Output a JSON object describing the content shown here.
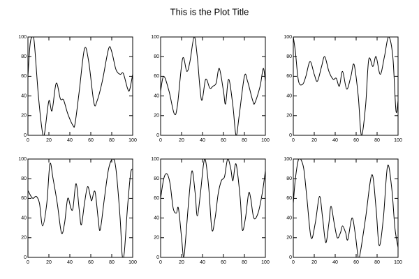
{
  "title": "This is the Plot Title",
  "chart_data": [
    {
      "type": "line",
      "color": "#000000",
      "xlim": [
        0,
        100
      ],
      "ylim": [
        0,
        100
      ],
      "xticks": [
        0,
        20,
        40,
        60,
        80,
        100
      ],
      "yticks": [
        0,
        20,
        40,
        60,
        80,
        100
      ],
      "x": [
        0,
        2,
        4,
        6,
        10,
        14,
        16,
        20,
        23,
        27,
        31,
        34,
        38,
        43,
        45,
        49,
        54,
        58,
        63,
        66,
        71,
        77,
        80,
        84,
        88,
        91,
        95,
        97,
        100
      ],
      "values": [
        60,
        92,
        100,
        95,
        40,
        2,
        3,
        35,
        25,
        53,
        37,
        36,
        22,
        10,
        12,
        45,
        88,
        75,
        33,
        35,
        55,
        88,
        85,
        67,
        62,
        63,
        48,
        46,
        62
      ]
    },
    {
      "type": "line",
      "color": "#000000",
      "xlim": [
        0,
        100
      ],
      "ylim": [
        0,
        100
      ],
      "xticks": [
        0,
        20,
        40,
        60,
        80,
        100
      ],
      "yticks": [
        0,
        20,
        40,
        60,
        80,
        100
      ],
      "x": [
        0,
        3,
        8,
        13,
        16,
        21,
        25,
        28,
        32,
        35,
        39,
        43,
        47,
        50,
        53,
        56,
        60,
        62,
        65,
        69,
        72,
        75,
        80,
        83,
        88,
        90,
        95,
        98,
        100
      ],
      "values": [
        45,
        60,
        45,
        22,
        30,
        78,
        65,
        75,
        100,
        80,
        36,
        57,
        48,
        50,
        53,
        68,
        45,
        32,
        57,
        30,
        0,
        20,
        60,
        55,
        35,
        33,
        50,
        68,
        55
      ]
    },
    {
      "type": "line",
      "color": "#000000",
      "xlim": [
        0,
        100
      ],
      "ylim": [
        0,
        100
      ],
      "xticks": [
        0,
        20,
        40,
        60,
        80,
        100
      ],
      "yticks": [
        0,
        20,
        40,
        60,
        80,
        100
      ],
      "x": [
        0,
        2,
        5,
        9,
        12,
        16,
        20,
        23,
        27,
        30,
        34,
        38,
        41,
        44,
        47,
        51,
        55,
        58,
        62,
        65,
        69,
        72,
        76,
        79,
        83,
        87,
        91,
        95,
        98,
        100
      ],
      "values": [
        100,
        85,
        55,
        52,
        60,
        75,
        62,
        55,
        70,
        80,
        65,
        57,
        58,
        50,
        65,
        47,
        60,
        72,
        40,
        0,
        30,
        77,
        70,
        80,
        62,
        80,
        100,
        80,
        25,
        35
      ]
    },
    {
      "type": "line",
      "color": "#000000",
      "xlim": [
        0,
        100
      ],
      "ylim": [
        0,
        100
      ],
      "xticks": [
        0,
        20,
        40,
        60,
        80,
        100
      ],
      "yticks": [
        0,
        20,
        40,
        60,
        80,
        100
      ],
      "x": [
        0,
        3,
        5,
        8,
        11,
        14,
        18,
        21,
        24,
        28,
        32,
        35,
        38,
        41,
        43,
        46,
        49,
        51,
        54,
        57,
        60,
        61,
        64,
        67,
        69,
        73,
        77,
        81,
        84,
        88,
        90,
        92,
        95,
        98,
        100
      ],
      "values": [
        68,
        62,
        60,
        62,
        55,
        32,
        55,
        95,
        80,
        55,
        25,
        35,
        60,
        50,
        50,
        75,
        48,
        33,
        55,
        72,
        60,
        58,
        67,
        40,
        28,
        60,
        90,
        100,
        90,
        40,
        2,
        5,
        50,
        85,
        90
      ]
    },
    {
      "type": "line",
      "color": "#000000",
      "xlim": [
        0,
        100
      ],
      "ylim": [
        0,
        100
      ],
      "xticks": [
        0,
        20,
        40,
        60,
        80,
        100
      ],
      "yticks": [
        0,
        20,
        40,
        60,
        80,
        100
      ],
      "x": [
        0,
        3,
        6,
        9,
        12,
        15,
        17,
        20,
        22,
        24,
        27,
        30,
        33,
        35,
        38,
        41,
        43,
        46,
        49,
        52,
        55,
        58,
        61,
        64,
        67,
        69,
        72,
        76,
        78,
        81,
        84,
        86,
        89,
        93,
        97,
        100
      ],
      "values": [
        60,
        80,
        85,
        75,
        50,
        45,
        50,
        20,
        0,
        20,
        60,
        88,
        65,
        42,
        65,
        95,
        98,
        70,
        28,
        40,
        65,
        78,
        82,
        100,
        90,
        78,
        95,
        60,
        28,
        40,
        65,
        60,
        40,
        45,
        65,
        88
      ]
    },
    {
      "type": "line",
      "color": "#000000",
      "xlim": [
        0,
        100
      ],
      "ylim": [
        0,
        100
      ],
      "xticks": [
        0,
        20,
        40,
        60,
        80,
        100
      ],
      "yticks": [
        0,
        20,
        40,
        60,
        80,
        100
      ],
      "x": [
        0,
        2,
        5,
        7,
        10,
        13,
        17,
        21,
        25,
        28,
        31,
        34,
        36,
        39,
        42,
        45,
        47,
        50,
        52,
        56,
        59,
        62,
        64,
        69,
        75,
        79,
        82,
        86,
        90,
        94,
        97,
        100
      ],
      "values": [
        55,
        80,
        100,
        100,
        90,
        60,
        20,
        35,
        62,
        40,
        15,
        35,
        52,
        35,
        20,
        25,
        32,
        25,
        18,
        40,
        25,
        0,
        5,
        40,
        84,
        50,
        12,
        40,
        93,
        70,
        30,
        10
      ]
    }
  ]
}
